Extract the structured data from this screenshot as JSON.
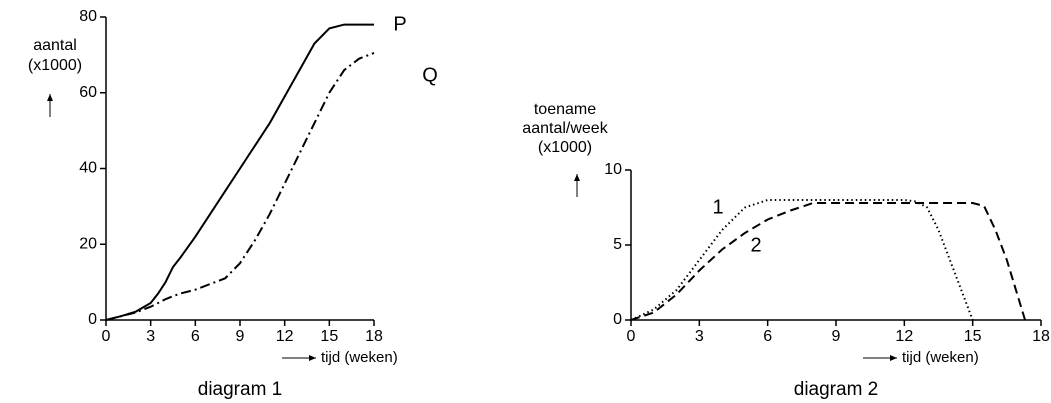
{
  "chart_data": [
    {
      "type": "line",
      "title": "diagram 1",
      "ylabel": [
        "aantal",
        "(x1000)"
      ],
      "xlabel": "tijd (weken)",
      "x": [
        0,
        1,
        2,
        3,
        3.5,
        4,
        4.5,
        5,
        6,
        7,
        8,
        9,
        10,
        11,
        12,
        13,
        14,
        15,
        16,
        17,
        18
      ],
      "series": [
        {
          "name": "P",
          "color": "#000000",
          "dash": "solid",
          "values": [
            0,
            1,
            2.2,
            4.5,
            7,
            10,
            14,
            16.5,
            22,
            28,
            34,
            40,
            46,
            52,
            59,
            66,
            73,
            77,
            78,
            78,
            78
          ]
        },
        {
          "name": "Q",
          "color": "#000000",
          "dash": "dashdot",
          "values": [
            0,
            1,
            2,
            3.5,
            4.5,
            5.5,
            6.3,
            7,
            8,
            9.5,
            11,
            15,
            21,
            28,
            36,
            44,
            52,
            60,
            66,
            69,
            70.5
          ]
        }
      ],
      "xlim": [
        0,
        18
      ],
      "xticks": [
        0,
        3,
        6,
        9,
        12,
        15,
        18
      ],
      "ylim": [
        0,
        80
      ],
      "yticks": [
        0,
        20,
        40,
        60,
        80
      ]
    },
    {
      "type": "line",
      "title": "diagram 2",
      "ylabel": [
        "toename",
        "aantal/week",
        "(x1000)"
      ],
      "xlabel": "tijd (weken)",
      "series": [
        {
          "name": "1",
          "color": "#000000",
          "dash": "dotted",
          "x": [
            0,
            1,
            2,
            3,
            4,
            5,
            6,
            12,
            12.5,
            13,
            13.5,
            14,
            14.5,
            15
          ],
          "values": [
            0,
            0.7,
            2,
            4,
            6,
            7.5,
            8,
            8,
            7.9,
            7.5,
            6,
            4,
            2,
            0
          ]
        },
        {
          "name": "2",
          "color": "#000000",
          "dash": "dashed",
          "x": [
            0,
            1,
            2,
            3,
            4,
            5,
            6,
            7,
            8,
            15,
            15.5,
            16,
            16.5,
            17,
            17.3
          ],
          "values": [
            0,
            0.5,
            1.7,
            3.3,
            4.7,
            5.8,
            6.7,
            7.3,
            7.8,
            7.8,
            7.6,
            6,
            4,
            1.5,
            0
          ]
        }
      ],
      "xlim": [
        0,
        18
      ],
      "xticks": [
        0,
        3,
        6,
        9,
        12,
        15,
        18
      ],
      "ylim": [
        0,
        10
      ],
      "yticks": [
        0,
        5,
        10
      ]
    }
  ]
}
